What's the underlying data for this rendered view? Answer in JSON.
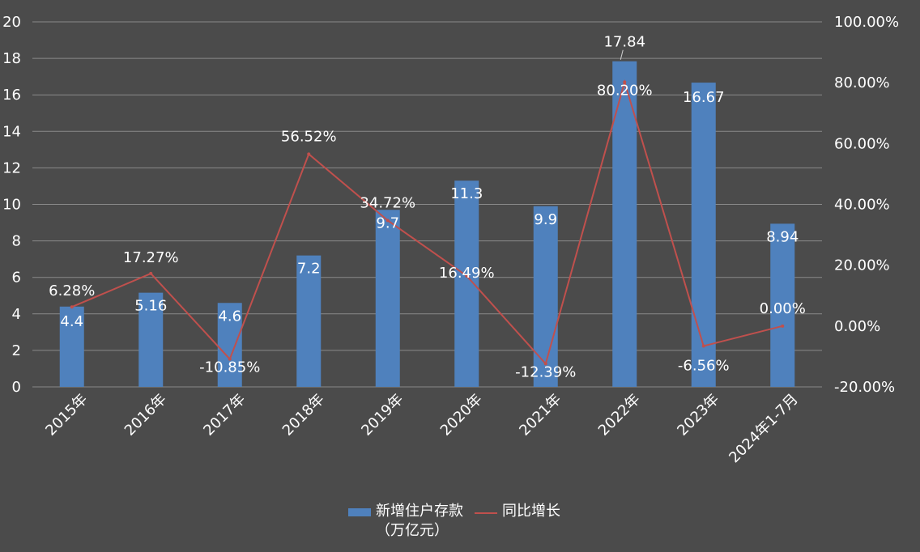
{
  "chart_data": {
    "type": "bar",
    "categories": [
      "2015年",
      "2016年",
      "2017年",
      "2018年",
      "2019年",
      "2020年",
      "2021年",
      "2022年",
      "2023年",
      "2024年1-7月"
    ],
    "series": [
      {
        "name": "新增住户存款\n（万亿元）",
        "type": "bar",
        "axis": "left",
        "color": "#4f81bd",
        "values": [
          4.4,
          5.16,
          4.6,
          7.2,
          9.7,
          11.3,
          9.9,
          17.84,
          16.67,
          8.94
        ],
        "labels": [
          "4.4",
          "5.16",
          "4.6",
          "7.2",
          "9.7",
          "11.3",
          "9.9",
          "17.84",
          "16.67",
          "8.94"
        ]
      },
      {
        "name": "同比增长",
        "type": "line",
        "axis": "right",
        "color": "#c0504d",
        "values": [
          6.28,
          17.27,
          -10.85,
          56.52,
          34.72,
          16.49,
          -12.39,
          80.2,
          -6.56,
          0.0
        ],
        "labels": [
          "6.28%",
          "17.27%",
          "-10.85%",
          "56.52%",
          "34.72%",
          "16.49%",
          "-12.39%",
          "80.20%",
          "-6.56%",
          "0.00%"
        ]
      }
    ],
    "y_left": {
      "min": 0,
      "max": 20,
      "ticks": [
        "0",
        "2",
        "4",
        "6",
        "8",
        "10",
        "12",
        "14",
        "16",
        "18",
        "20"
      ]
    },
    "y_right": {
      "min": -20,
      "max": 100,
      "ticks": [
        "-20.00%",
        "0.00%",
        "20.00%",
        "40.00%",
        "60.00%",
        "80.00%",
        "100.00%"
      ]
    },
    "grid": true,
    "legend_position": "bottom"
  },
  "colors": {
    "background": "#4b4b4b",
    "gridline": "#8a8a8a",
    "text": "#ffffff"
  }
}
